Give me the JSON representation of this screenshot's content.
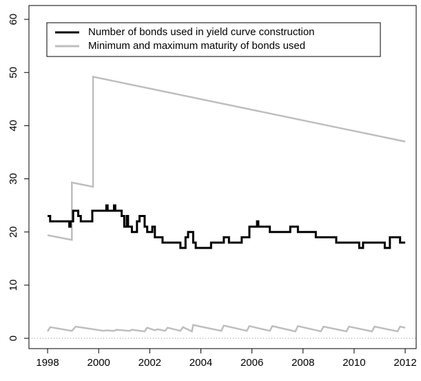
{
  "chart_data": {
    "type": "line",
    "xlim": [
      1997.27,
      2012.43
    ],
    "ylim": [
      -1.94,
      62.6
    ],
    "xticks": [
      1998,
      2000,
      2002,
      2004,
      2006,
      2008,
      2010,
      2012
    ],
    "yticks": [
      0,
      10,
      20,
      30,
      40,
      50,
      60
    ],
    "hline": 0,
    "series": [
      {
        "name": "Number of bonds used in yield curve construction",
        "color": "#000000",
        "step": true,
        "x": [
          1998.0,
          1998.1,
          1998.85,
          1998.9,
          1999.0,
          1999.2,
          1999.3,
          1999.75,
          2000.3,
          2000.35,
          2000.6,
          2000.65,
          2000.9,
          2001.0,
          2001.1,
          2001.15,
          2001.3,
          2001.5,
          2001.6,
          2001.8,
          2001.9,
          2002.1,
          2002.2,
          2002.5,
          2003.2,
          2003.4,
          2003.5,
          2003.7,
          2003.8,
          2004.4,
          2004.9,
          2005.1,
          2005.6,
          2005.9,
          2006.2,
          2006.25,
          2006.7,
          2007.5,
          2007.8,
          2008.5,
          2009.3,
          2010.2,
          2010.35,
          2011.2,
          2011.4,
          2011.8,
          2012.0
        ],
        "values": [
          23,
          22,
          21,
          22,
          24,
          23,
          22,
          24,
          25,
          24,
          25,
          24,
          23,
          21,
          23,
          21,
          20,
          22,
          23,
          21,
          20,
          21,
          19,
          18,
          17,
          19,
          20,
          18,
          17,
          18,
          19,
          18,
          19,
          21,
          22,
          21,
          20,
          21,
          20,
          19,
          18,
          17,
          18,
          17,
          19,
          18,
          18
        ]
      },
      {
        "name": "Minimum and maximum maturity of bonds used",
        "color": "#bebebe",
        "step": false,
        "x": [
          1998.0,
          1998.95,
          1998.95,
          1999.78,
          1999.78,
          2012.0,
          null,
          1998.0,
          1998.1,
          1998.95,
          1999.1,
          2000.2,
          2000.3,
          2000.6,
          2000.7,
          2001.2,
          2001.3,
          2001.8,
          2001.9,
          2002.2,
          2002.3,
          2002.6,
          2002.7,
          2003.2,
          2003.3,
          2003.65,
          2003.7,
          2004.8,
          2004.9,
          2005.8,
          2005.9,
          2006.7,
          2006.8,
          2007.7,
          2007.8,
          2008.7,
          2008.8,
          2009.7,
          2009.8,
          2010.7,
          2010.8,
          2011.7,
          2011.8,
          2012.0
        ],
        "values": [
          19.4,
          18.5,
          29.3,
          28.5,
          49.2,
          37.0,
          null,
          1.3,
          2.1,
          1.4,
          2.2,
          1.4,
          1.5,
          1.4,
          1.6,
          1.4,
          1.6,
          1.3,
          2.0,
          1.5,
          1.7,
          1.4,
          2.0,
          1.4,
          2.1,
          1.3,
          2.5,
          1.4,
          2.4,
          1.4,
          2.3,
          1.4,
          2.3,
          1.3,
          2.3,
          1.3,
          2.2,
          1.3,
          2.2,
          1.3,
          2.2,
          1.3,
          2.2,
          2.0
        ]
      }
    ]
  }
}
